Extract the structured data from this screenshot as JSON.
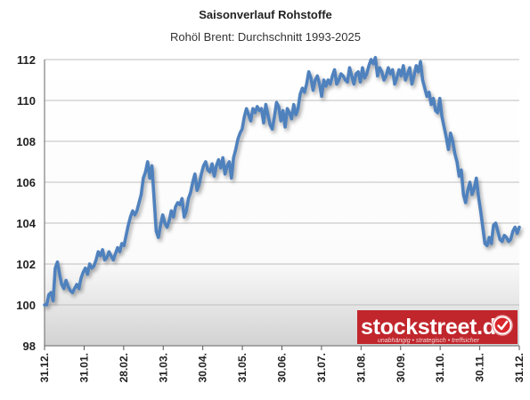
{
  "chart_data": {
    "type": "line",
    "title": "Saisonverlauf Rohstoffe",
    "subtitle": "Rohöl Brent: Durchschnitt 1993-2025",
    "ylim": [
      98,
      112
    ],
    "yticks": [
      "98",
      "100",
      "102",
      "104",
      "106",
      "108",
      "110",
      "112"
    ],
    "xticks": [
      "31.12.",
      "31.01.",
      "28.02.",
      "31.03.",
      "30.04.",
      "31.05.",
      "30.06.",
      "31.07.",
      "31.08.",
      "30.09.",
      "31.10.",
      "30.11.",
      "31.12."
    ],
    "grid": true,
    "colors": {
      "line": "#4f81bd",
      "grid": "#bfbfbf",
      "fill_bottom": "#d9d9d9"
    },
    "series": [
      {
        "values": [
          100.0,
          100.0,
          100.5,
          100.6,
          100.2,
          101.8,
          102.1,
          101.5,
          101.0,
          100.8,
          101.2,
          100.9,
          100.7,
          100.6,
          100.8,
          101.0,
          100.8,
          101.3,
          101.6,
          101.8,
          101.5,
          102.0,
          101.8,
          101.9,
          102.2,
          102.6,
          102.4,
          102.7,
          102.2,
          102.3,
          102.6,
          102.4,
          102.2,
          102.5,
          102.8,
          102.6,
          103.0,
          102.9,
          103.4,
          103.9,
          104.3,
          104.6,
          104.4,
          104.6,
          105.0,
          105.4,
          106.2,
          106.5,
          107.0,
          106.2,
          106.8,
          105.2,
          103.6,
          103.3,
          103.9,
          104.4,
          104.0,
          103.8,
          104.1,
          104.6,
          104.3,
          104.8,
          105.0,
          104.9,
          105.2,
          104.3,
          104.6,
          105.2,
          105.5,
          106.0,
          106.4,
          105.6,
          105.9,
          106.4,
          106.8,
          107.0,
          106.6,
          106.5,
          106.9,
          106.3,
          106.8,
          107.1,
          106.7,
          107.2,
          106.4,
          106.8,
          107.0,
          106.2,
          107.2,
          107.6,
          108.1,
          108.4,
          108.6,
          109.2,
          109.6,
          109.3,
          109.0,
          109.6,
          109.4,
          109.7,
          109.5,
          109.6,
          108.9,
          109.8,
          109.3,
          108.8,
          108.6,
          109.2,
          109.9,
          109.7,
          109.0,
          109.5,
          108.7,
          109.6,
          109.4,
          109.1,
          109.8,
          109.3,
          109.6,
          110.3,
          110.6,
          110.4,
          110.8,
          111.4,
          111.1,
          110.5,
          111.0,
          111.2,
          110.8,
          110.2,
          111.0,
          110.7,
          111.0,
          110.8,
          111.2,
          111.5,
          110.8,
          111.0,
          111.3,
          111.2,
          111.0,
          110.9,
          111.6,
          111.2,
          110.8,
          111.3,
          111.4,
          110.9,
          111.6,
          111.1,
          111.3,
          111.7,
          112.0,
          111.8,
          112.1,
          111.2,
          111.6,
          111.4,
          111.0,
          111.2,
          111.6,
          111.3,
          111.5,
          110.8,
          111.1,
          111.5,
          111.2,
          111.7,
          111.0,
          111.3,
          111.6,
          110.8,
          111.2,
          111.7,
          111.4,
          111.9,
          111.0,
          110.6,
          110.2,
          110.4,
          109.8,
          110.1,
          109.5,
          109.4,
          110.1,
          109.2,
          108.7,
          108.2,
          107.6,
          108.4,
          108.0,
          107.4,
          107.0,
          106.3,
          106.6,
          105.4,
          105.0,
          105.6,
          106.0,
          105.4,
          105.7,
          106.2,
          105.3,
          104.6,
          103.8,
          103.0,
          102.9,
          103.3,
          103.0,
          103.9,
          104.0,
          103.6,
          103.2,
          103.1,
          103.4,
          103.3,
          103.1,
          103.2,
          103.6,
          103.8,
          103.5,
          103.8
        ]
      }
    ]
  },
  "brand": {
    "name": "stockstreet.de",
    "tagline": "unabhängig • strategisch • treffsicher",
    "logo_color": "#c0262c"
  }
}
